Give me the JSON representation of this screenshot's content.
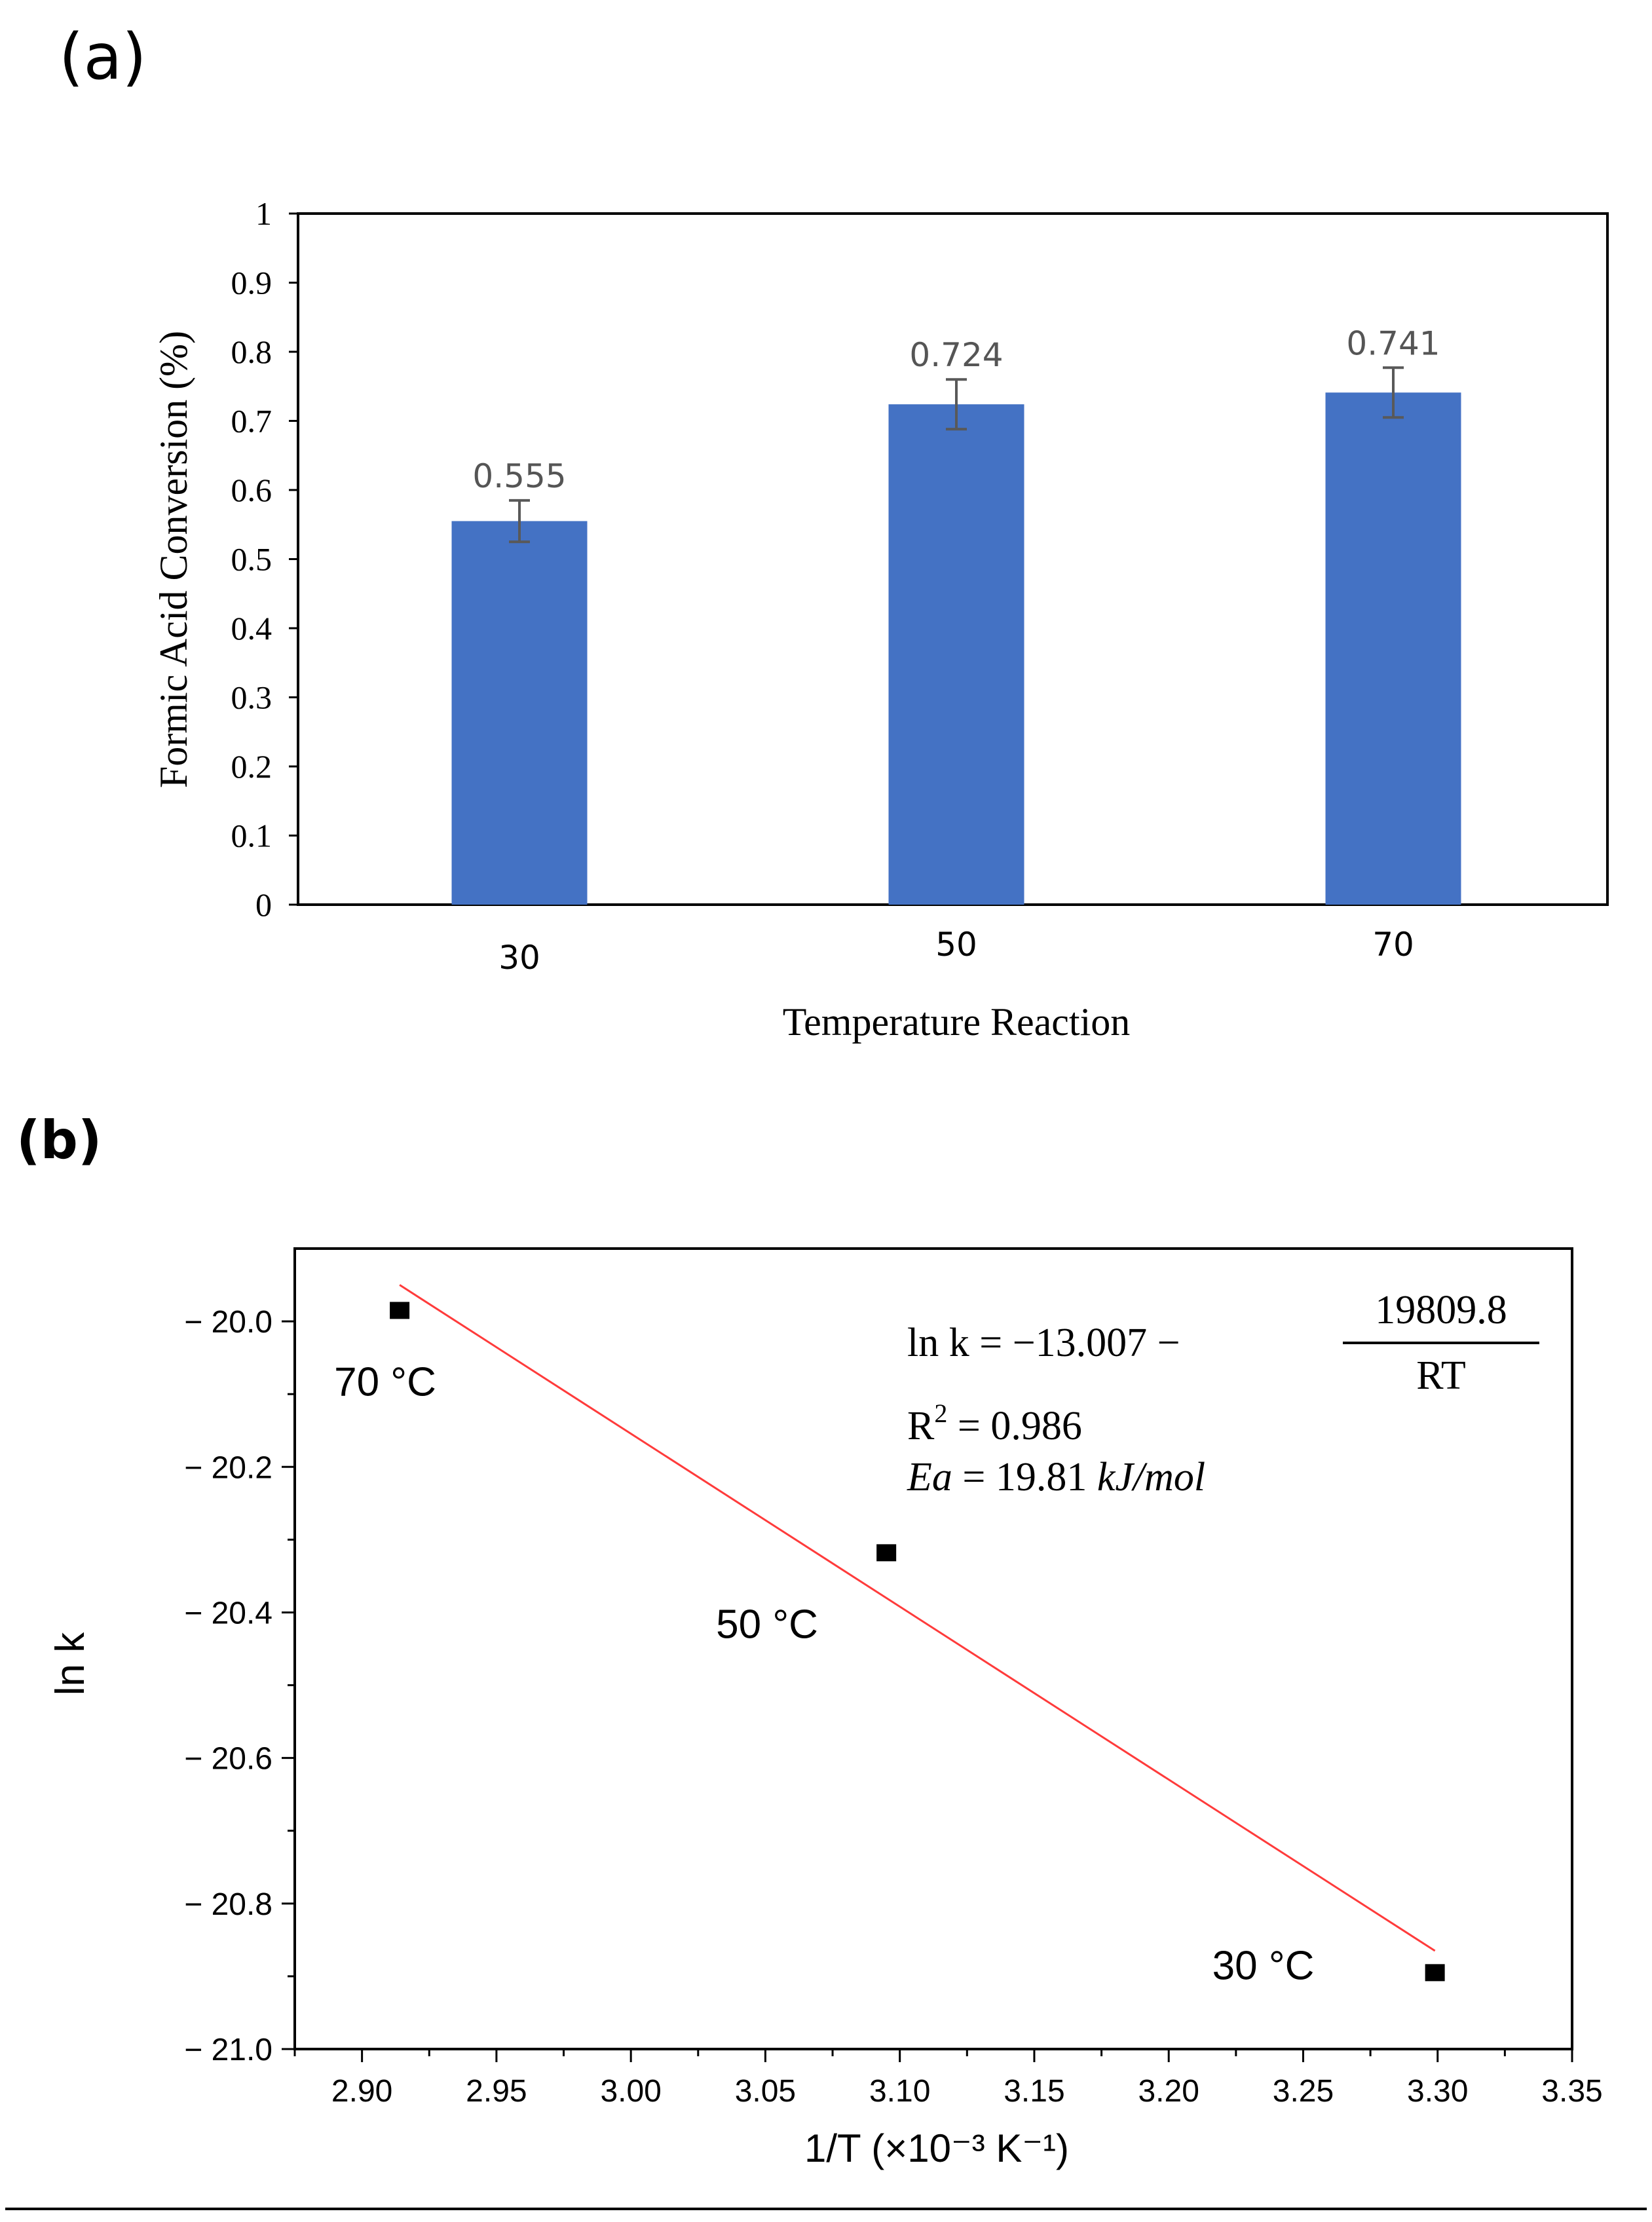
{
  "panel_a_label": "(a)",
  "panel_b_label": "(b)",
  "chart_data": [
    {
      "type": "bar",
      "title": "",
      "categories": [
        "30",
        "50",
        "70"
      ],
      "values": [
        0.555,
        0.724,
        0.741
      ],
      "value_labels": [
        "0.555",
        "0.724",
        "0.741"
      ],
      "errors": [
        0.03,
        0.036,
        0.036
      ],
      "bar_color": "#4472C4",
      "error_color": "#595959",
      "xlabel": "Temperature Reaction",
      "ylabel": "Formic Acid Conversion (%)",
      "ylim": [
        0,
        1
      ],
      "yticks": [
        0,
        0.1,
        0.2,
        0.3,
        0.4,
        0.5,
        0.6,
        0.7,
        0.8,
        0.9,
        1
      ],
      "ytick_labels": [
        "0",
        "0.1",
        "0.2",
        "0.3",
        "0.4",
        "0.5",
        "0.6",
        "0.7",
        "0.8",
        "0.9",
        "1"
      ],
      "grid": false
    },
    {
      "type": "scatter",
      "title": "",
      "xlabel": "1/T (×10⁻³ K⁻¹)",
      "ylabel": "ln k",
      "xlim": [
        2.875,
        3.35
      ],
      "ylim": [
        -21.0,
        -19.9
      ],
      "xticks": [
        2.9,
        2.95,
        3.0,
        3.05,
        3.1,
        3.15,
        3.2,
        3.25,
        3.3,
        3.35
      ],
      "xtick_labels": [
        "2.90",
        "2.95",
        "3.00",
        "3.05",
        "3.10",
        "3.15",
        "3.20",
        "3.25",
        "3.30",
        "3.35"
      ],
      "yticks": [
        -20.0,
        -20.2,
        -20.4,
        -20.6,
        -20.8,
        -21.0
      ],
      "ytick_labels": [
        "− 20.0",
        "− 20.2",
        "− 20.4",
        "− 20.6",
        "− 20.8",
        "− 21.0"
      ],
      "points": [
        {
          "x": 2.914,
          "y": -19.985,
          "label": "70 °C"
        },
        {
          "x": 3.095,
          "y": -20.318,
          "label": "50 °C"
        },
        {
          "x": 3.299,
          "y": -20.895,
          "label": "30 °C"
        }
      ],
      "fit_line": {
        "x": [
          2.914,
          3.299
        ],
        "y": [
          -19.95,
          -20.865
        ],
        "color": "#FF3B3B"
      },
      "marker_color": "#000000",
      "equation": {
        "lhs": "ln k = −13.007 −",
        "numerator": "19809.8",
        "denominator": "RT",
        "r2_prefix": "R",
        "r2_exp": "2",
        "r2_value": " = 0.986",
        "ea_symbol": "Ea",
        "ea_value": " = 19.81 ",
        "ea_unit": "kJ/mol"
      },
      "grid": false
    }
  ]
}
